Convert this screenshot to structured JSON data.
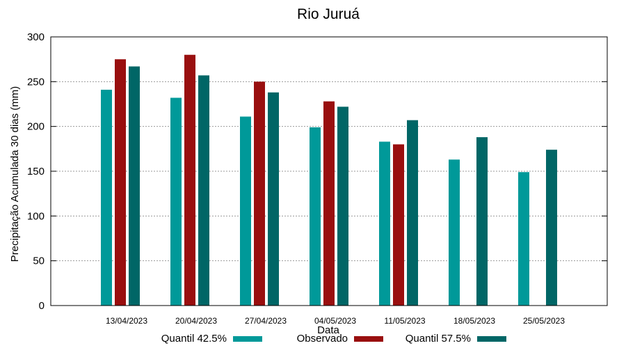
{
  "chart_data": {
    "type": "bar",
    "title": "Rio Juruá",
    "xlabel": "Data",
    "ylabel": "Precipitação Acumulada 30 dias (mm)",
    "ylim": [
      0,
      300
    ],
    "yticks": [
      0,
      50,
      100,
      150,
      200,
      250,
      300
    ],
    "grid": true,
    "legend_position": "bottom",
    "categories": [
      "13/04/2023",
      "20/04/2023",
      "27/04/2023",
      "04/05/2023",
      "11/05/2023",
      "18/05/2023",
      "25/05/2023"
    ],
    "series": [
      {
        "name": "Quantil 42.5%",
        "color": "#009999",
        "values": [
          241,
          232,
          211,
          199,
          183,
          163,
          149
        ]
      },
      {
        "name": "Observado",
        "color": "#990f0f",
        "values": [
          275,
          280,
          250,
          228,
          180,
          null,
          null
        ]
      },
      {
        "name": "Quantil 57.5%",
        "color": "#006666",
        "values": [
          267,
          257,
          238,
          222,
          207,
          188,
          174
        ]
      }
    ]
  }
}
